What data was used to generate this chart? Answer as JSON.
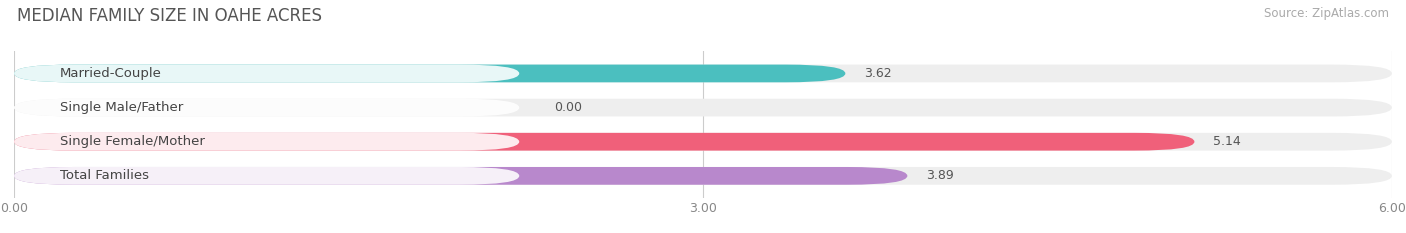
{
  "title": "MEDIAN FAMILY SIZE IN OAHE ACRES",
  "source": "Source: ZipAtlas.com",
  "categories": [
    "Married-Couple",
    "Single Male/Father",
    "Single Female/Mother",
    "Total Families"
  ],
  "values": [
    3.62,
    0.0,
    5.14,
    3.89
  ],
  "bar_colors": [
    "#4bbfbf",
    "#a8b8e8",
    "#f0607a",
    "#b888cc"
  ],
  "bar_bg_color": "#eeeeee",
  "xlim": [
    0,
    6.0
  ],
  "xticks": [
    0.0,
    3.0,
    6.0
  ],
  "xtick_labels": [
    "0.00",
    "3.00",
    "6.00"
  ],
  "title_fontsize": 12,
  "source_fontsize": 8.5,
  "label_fontsize": 9.5,
  "value_fontsize": 9,
  "bar_height": 0.52,
  "background_color": "#ffffff"
}
